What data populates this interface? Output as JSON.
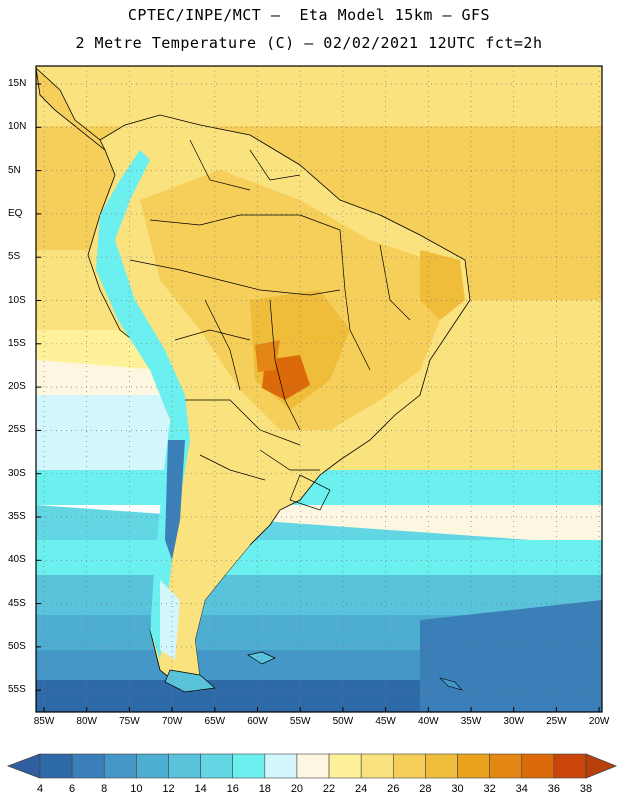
{
  "title_line1": "CPTEC/INPE/MCT –  Eta Model 15km – GFS",
  "title_line2": "2 Metre Temperature (C) – 02/02/2021 12UTC fct=2h",
  "lat_labels": [
    "15N",
    "10N",
    "5N",
    "EQ",
    "5S",
    "10S",
    "15S",
    "20S",
    "25S",
    "30S",
    "35S",
    "40S",
    "45S",
    "50S",
    "55S"
  ],
  "lon_labels": [
    "85W",
    "80W",
    "75W",
    "70W",
    "65W",
    "60W",
    "55W",
    "50W",
    "45W",
    "40W",
    "35W",
    "30W",
    "25W",
    "20W"
  ],
  "colorbar_values": [
    "4",
    "6",
    "8",
    "10",
    "12",
    "14",
    "16",
    "18",
    "20",
    "22",
    "24",
    "26",
    "28",
    "30",
    "32",
    "34",
    "36",
    "38"
  ],
  "colorbar_colors": [
    "#2f6aa8",
    "#3a7fb8",
    "#4497c6",
    "#4eaed2",
    "#59c3db",
    "#62d7e3",
    "#6bf0ef",
    "#d2f6fb",
    "#fdf6e0",
    "#fdf29a",
    "#fae27e",
    "#f6cf5a",
    "#efbd3a",
    "#eaa21c",
    "#e48614",
    "#dd6a0a",
    "#c9450a"
  ],
  "colorbar_arrow_low": "#2f5fa0",
  "colorbar_arrow_high": "#b8400a"
}
